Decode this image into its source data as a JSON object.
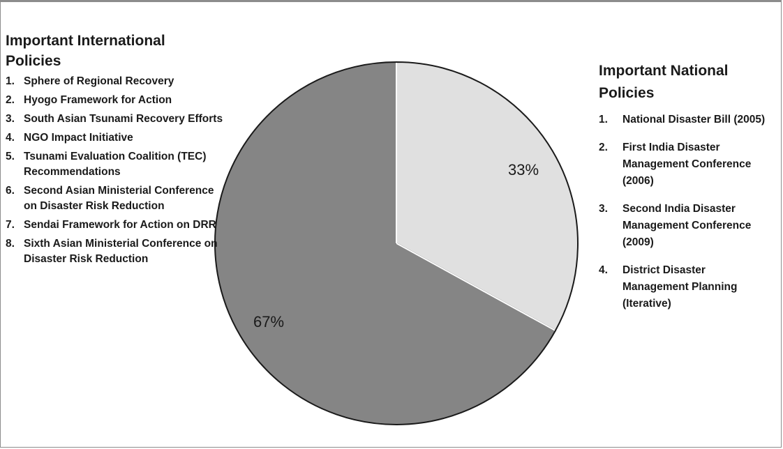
{
  "international": {
    "title": "Important International Policies",
    "items": [
      {
        "num": "1.",
        "text": "Sphere of Regional Recovery"
      },
      {
        "num": "2.",
        "text": "Hyogo Framework for Action"
      },
      {
        "num": "3.",
        "text": "South Asian Tsunami Recovery Efforts"
      },
      {
        "num": "4.",
        "text": "NGO Impact Initiative"
      },
      {
        "num": "5.",
        "text": "Tsunami Evaluation Coalition (TEC) Recommendations"
      },
      {
        "num": "6.",
        "text": "Second Asian Ministerial Conference on Disaster Risk Reduction"
      },
      {
        "num": "7.",
        "text": "Sendai Framework for Action on DRR"
      },
      {
        "num": "8.",
        "text": "Sixth Asian Ministerial Conference on Disaster Risk Reduction"
      }
    ]
  },
  "national": {
    "title": "Important National Policies",
    "items": [
      {
        "num": "1.",
        "text": "National Disaster Bill (2005)"
      },
      {
        "num": "2.",
        "text": "First India Disaster Management Conference (2006)"
      },
      {
        "num": "3.",
        "text": "Second India Disaster Management Conference (2009)"
      },
      {
        "num": "4.",
        "text": "District Disaster Management Planning (Iterative)"
      }
    ]
  },
  "chart_data": {
    "type": "pie",
    "slices": [
      {
        "label": "33%",
        "value": 33,
        "color": "#e0e0e0"
      },
      {
        "label": "67%",
        "value": 67,
        "color": "#858585"
      }
    ],
    "title": "",
    "legend": "none",
    "start": "top",
    "direction": "clockwise"
  },
  "colors": {
    "outline": "#1a1a1a",
    "frame": "#8c8c8c"
  }
}
